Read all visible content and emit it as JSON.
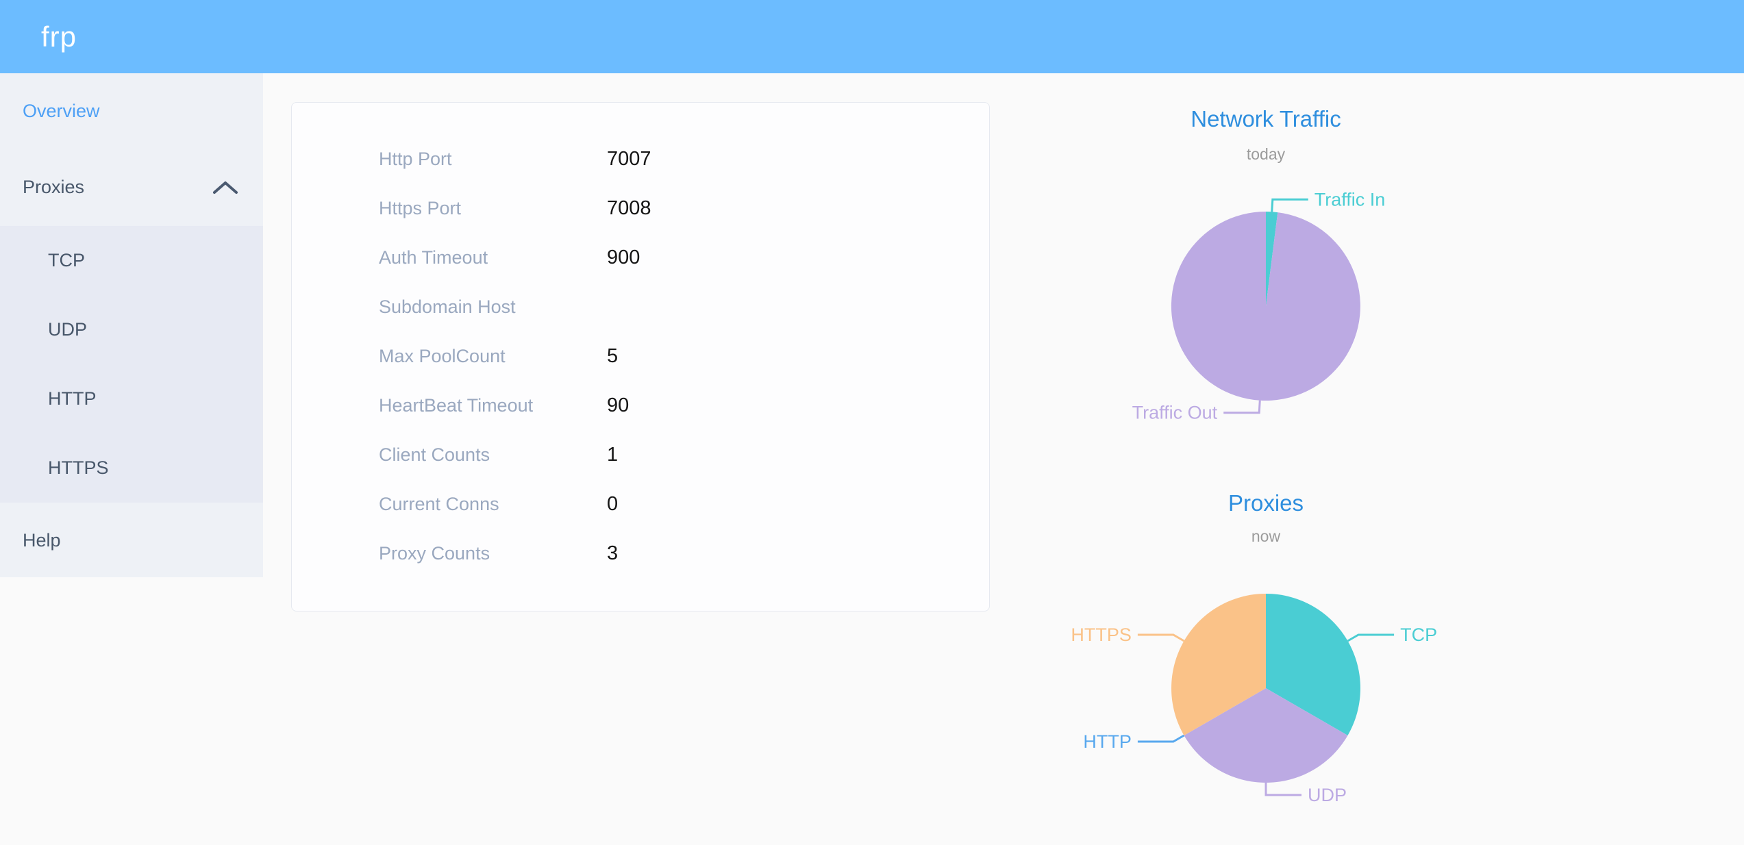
{
  "header": {
    "logo": "frp"
  },
  "colors": {
    "header_bg": "#6cbcff",
    "page_bg": "#fafafa",
    "sidebar_bg": "#eef1f6",
    "submenu_bg": "#e7eaf3",
    "sidebar_text": "#48576a",
    "active_item": "#4da0f5",
    "chart_title": "#2e8ede",
    "teal": "#4acdd3",
    "purple": "#bcaae3",
    "blue": "#58a8ee",
    "orange": "#fac288"
  },
  "sidebar": {
    "overview": {
      "label": "Overview",
      "active": true
    },
    "proxies": {
      "label": "Proxies",
      "expanded": true
    },
    "proxy_types": [
      {
        "label": "TCP"
      },
      {
        "label": "UDP"
      },
      {
        "label": "HTTP"
      },
      {
        "label": "HTTPS"
      }
    ],
    "help": {
      "label": "Help"
    }
  },
  "overview": {
    "rows": [
      {
        "label": "Http Port",
        "value": "7007"
      },
      {
        "label": "Https Port",
        "value": "7008"
      },
      {
        "label": "Auth Timeout",
        "value": "900"
      },
      {
        "label": "Subdomain Host",
        "value": ""
      },
      {
        "label": "Max PoolCount",
        "value": "5"
      },
      {
        "label": "HeartBeat Timeout",
        "value": "90"
      },
      {
        "label": "Client Counts",
        "value": "1"
      },
      {
        "label": "Current Conns",
        "value": "0"
      },
      {
        "label": "Proxy Counts",
        "value": "3"
      }
    ]
  },
  "chart_data": [
    {
      "type": "pie",
      "title": "Network Traffic",
      "subtitle": "today",
      "legend_position": "none",
      "slices": [
        {
          "label": "Traffic In",
          "value": 2,
          "color": "#4acdd3"
        },
        {
          "label": "Traffic Out",
          "value": 98,
          "color": "#bcaae3"
        }
      ]
    },
    {
      "type": "pie",
      "title": "Proxies",
      "subtitle": "now",
      "legend_position": "none",
      "slices": [
        {
          "label": "TCP",
          "value": 1,
          "color": "#4acdd3"
        },
        {
          "label": "UDP",
          "value": 1,
          "color": "#bcaae3"
        },
        {
          "label": "HTTP",
          "value": 0,
          "color": "#58a8ee"
        },
        {
          "label": "HTTPS",
          "value": 1,
          "color": "#fac288"
        }
      ]
    }
  ]
}
